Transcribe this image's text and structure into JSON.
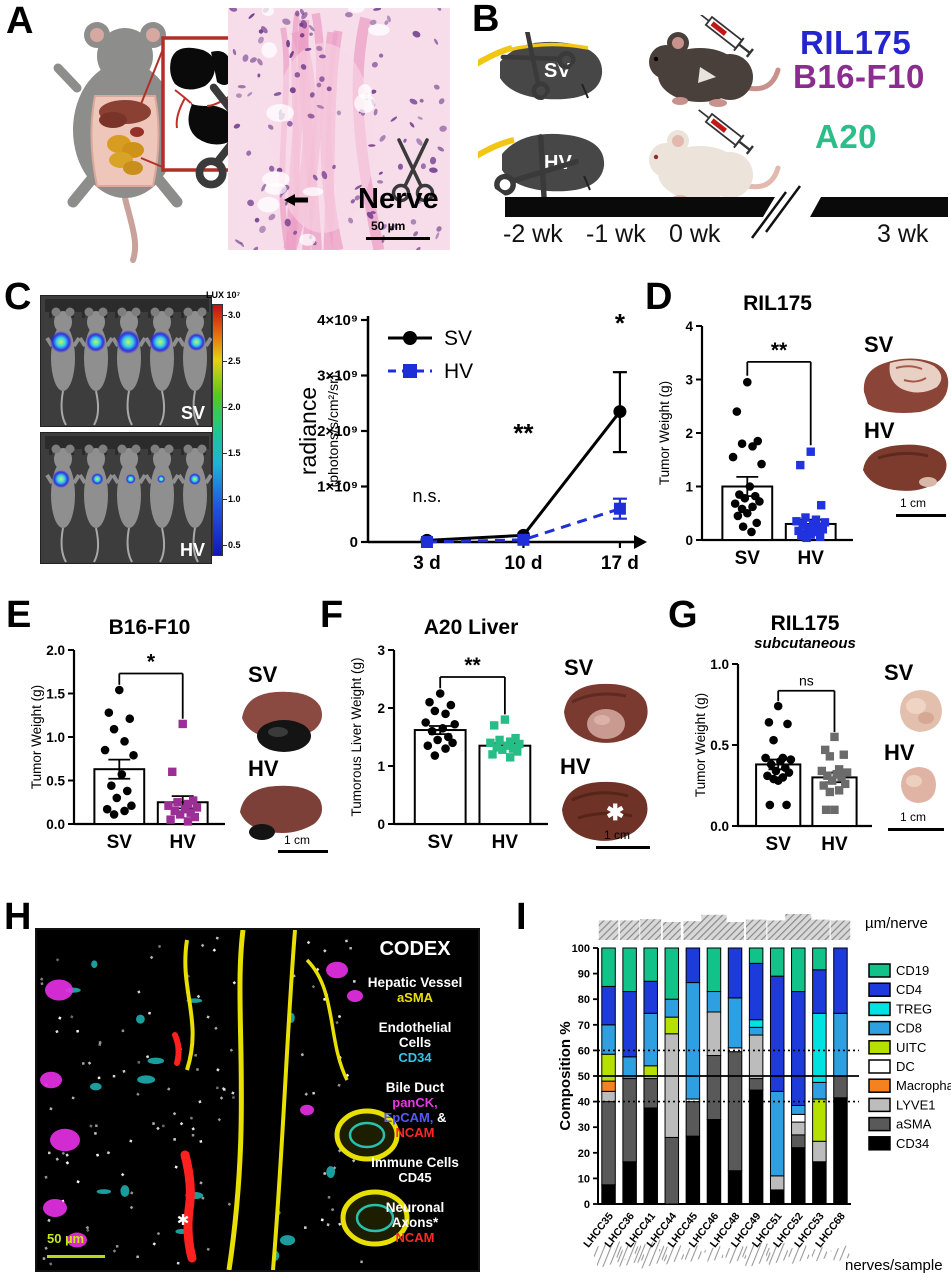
{
  "figure": {
    "panel_labels": {
      "a": "A",
      "b": "B",
      "c": "C",
      "d": "D",
      "e": "E",
      "f": "F",
      "g": "G",
      "h": "H",
      "i": "I"
    },
    "a": {
      "nerve": "Nerve",
      "scale": "50 µm"
    },
    "b": {
      "liver_top": "SV",
      "liver_bottom": "HV",
      "cell_lines": [
        {
          "label": "RIL175",
          "color": "#2525cf"
        },
        {
          "label": "B16-F10",
          "color": "#8b2d8e"
        },
        {
          "label": "A20",
          "color": "#2dbd8b"
        }
      ],
      "timeline": [
        "-2 wk",
        "-1 wk",
        "0 wk",
        "3 wk"
      ]
    },
    "c": {
      "img_top": "SV",
      "img_bottom": "HV",
      "lux_title": "LUX 10⁷",
      "lux_ticks": [
        "3.0",
        "2.5",
        "2.0",
        "1.5",
        "1.0",
        "0.5"
      ]
    },
    "d_photos": {
      "top": "SV",
      "bottom": "HV",
      "scale": "1 cm"
    },
    "e_photos": {
      "top": "SV",
      "bottom": "HV",
      "scale": "1 cm"
    },
    "f_photos": {
      "top": "SV",
      "bottom": "HV",
      "scale": "1 cm",
      "asterisk": "✱"
    },
    "g_photos": {
      "top": "SV",
      "bottom": "HV",
      "scale": "1 cm"
    },
    "h": {
      "title": "CODEX",
      "e0_title": "Hepatic Vessel",
      "e0_m": "aSMA",
      "e1_t1": "Endothelial",
      "e1_t2": "Cells",
      "e1_m": "CD34",
      "e2_title": "Bile Duct",
      "e2_m1": "panCK,",
      "e2_m2a": "EpCAM,",
      "e2_m2b": " &",
      "e2_m3": "NCAM",
      "e3_title": "Immune Cells",
      "e3_m": "CD45",
      "e4_t1": "Neuronal",
      "e4_t2": "Axons*",
      "e4_m": "NCAM",
      "scale": "50 µm",
      "marker_colors": {
        "aSMA": "#e8e000",
        "CD34": "#30c8e8",
        "panCK": "#e838e8",
        "EpCAM": "#5858ff",
        "NCAM": "#ff2828",
        "CD45": "#ffffff"
      }
    }
  },
  "chart_data": [
    {
      "id": "c-radiance",
      "type": "line",
      "ylabel_main": "radiance",
      "ylabel_sub": "(photons/s/cm²/sr)",
      "x": [
        "3 d",
        "10 d",
        "17 d"
      ],
      "ylim": [
        0,
        4
      ],
      "yticks": [
        0,
        1,
        2,
        3,
        4
      ],
      "ytick_labels": [
        "0",
        "1×10⁹",
        "2×10⁹",
        "3×10⁹",
        "4×10⁹"
      ],
      "series": [
        {
          "name": "SV",
          "color": "#000000",
          "marker": "circle",
          "dash": false,
          "values": [
            0.03,
            0.12,
            2.35
          ],
          "err": [
            [
              0,
              0
            ],
            [
              0,
              0
            ],
            [
              0.73,
              0.71
            ]
          ]
        },
        {
          "name": "HV",
          "color": "#1f2fd8",
          "marker": "square",
          "dash": true,
          "values": [
            0.0,
            0.04,
            0.6
          ],
          "err": [
            [
              0,
              0
            ],
            [
              0,
              0
            ],
            [
              0.18,
              0.18
            ]
          ]
        }
      ],
      "annotations": [
        {
          "text": "n.s.",
          "xi": 0,
          "y": 0.72
        },
        {
          "text": "**",
          "xi": 1,
          "y": 1.8
        },
        {
          "text": "*",
          "xi": 2,
          "y": 3.78
        }
      ]
    },
    {
      "id": "d-ril175",
      "type": "bar-scatter",
      "title": "RIL175",
      "subtitle": "",
      "ylabel": "Tumor Weight (g)",
      "ylim": [
        0,
        4
      ],
      "yticks": [
        0,
        1,
        2,
        3,
        4
      ],
      "ytick_labels": [
        "0",
        "1",
        "2",
        "3",
        "4"
      ],
      "sig": "**",
      "groups": [
        {
          "label": "SV",
          "mean": 1.0,
          "sem": 0.18,
          "color": "#000000",
          "marker": "circle",
          "points": [
            2.95,
            2.4,
            1.85,
            1.8,
            1.75,
            1.55,
            1.42,
            1.0,
            0.85,
            0.82,
            0.78,
            0.72,
            0.68,
            0.62,
            0.58,
            0.5,
            0.45,
            0.32,
            0.25,
            0.15
          ]
        },
        {
          "label": "HV",
          "mean": 0.3,
          "sem": 0.08,
          "color": "#2133e0",
          "marker": "square",
          "points": [
            1.65,
            1.4,
            0.65,
            0.42,
            0.38,
            0.35,
            0.33,
            0.3,
            0.28,
            0.25,
            0.22,
            0.2,
            0.17,
            0.15,
            0.12,
            0.1,
            0.08,
            0.06,
            0.04
          ]
        }
      ]
    },
    {
      "id": "e-b16",
      "type": "bar-scatter",
      "title": "B16-F10",
      "subtitle": "",
      "ylabel": "Tumor Weight (g)",
      "ylim": [
        0,
        2
      ],
      "yticks": [
        0,
        0.5,
        1,
        1.5,
        2
      ],
      "ytick_labels": [
        "0.0",
        "0.5",
        "1.0",
        "1.5",
        "2.0"
      ],
      "sig": "*",
      "groups": [
        {
          "label": "SV",
          "mean": 0.63,
          "sem": 0.11,
          "color": "#000000",
          "marker": "circle",
          "points": [
            1.54,
            1.28,
            1.21,
            1.09,
            0.95,
            0.85,
            0.79,
            0.57,
            0.44,
            0.38,
            0.3,
            0.21,
            0.17,
            0.15,
            0.11
          ]
        },
        {
          "label": "HV",
          "mean": 0.25,
          "sem": 0.07,
          "color": "#9c2f96",
          "marker": "square",
          "points": [
            1.15,
            0.6,
            0.27,
            0.25,
            0.23,
            0.21,
            0.19,
            0.17,
            0.15,
            0.13,
            0.11,
            0.08,
            0.05,
            0.03
          ]
        }
      ]
    },
    {
      "id": "f-a20",
      "type": "bar-scatter",
      "title": "A20 Liver",
      "subtitle": "",
      "ylabel": "Tumorous Liver Weight (g)",
      "ylim": [
        0,
        3
      ],
      "yticks": [
        0,
        1,
        2,
        3
      ],
      "ytick_labels": [
        "0",
        "1",
        "2",
        "3"
      ],
      "sig": "**",
      "groups": [
        {
          "label": "SV",
          "mean": 1.62,
          "sem": 0.07,
          "color": "#000000",
          "marker": "circle",
          "points": [
            2.25,
            2.1,
            2.05,
            1.95,
            1.9,
            1.75,
            1.72,
            1.65,
            1.6,
            1.5,
            1.45,
            1.4,
            1.35,
            1.3,
            1.18
          ]
        },
        {
          "label": "HV",
          "mean": 1.35,
          "sem": 0.04,
          "color": "#27bd87",
          "marker": "square",
          "points": [
            1.8,
            1.7,
            1.48,
            1.45,
            1.42,
            1.4,
            1.38,
            1.35,
            1.32,
            1.3,
            1.28,
            1.25,
            1.2,
            1.15
          ]
        }
      ]
    },
    {
      "id": "g-subq",
      "type": "bar-scatter",
      "title": "RIL175",
      "subtitle": "subcutaneous",
      "ylabel": "Tumor Weight (g)",
      "ylim": [
        0,
        1
      ],
      "yticks": [
        0,
        0.5,
        1
      ],
      "ytick_labels": [
        "0.0",
        "0.5",
        "1.0"
      ],
      "sig": "ns",
      "groups": [
        {
          "label": "SV",
          "mean": 0.38,
          "sem": 0.03,
          "color": "#000000",
          "marker": "circle",
          "points": [
            0.74,
            0.64,
            0.63,
            0.53,
            0.42,
            0.42,
            0.41,
            0.4,
            0.38,
            0.36,
            0.34,
            0.33,
            0.31,
            0.3,
            0.29,
            0.28,
            0.13,
            0.13
          ]
        },
        {
          "label": "HV",
          "mean": 0.3,
          "sem": 0.03,
          "color": "#6b6b6b",
          "marker": "square",
          "points": [
            0.55,
            0.47,
            0.44,
            0.43,
            0.35,
            0.34,
            0.33,
            0.32,
            0.31,
            0.3,
            0.28,
            0.26,
            0.25,
            0.22,
            0.21,
            0.1,
            0.1
          ]
        }
      ]
    },
    {
      "id": "i-composition",
      "type": "stacked",
      "ylabel": "Composition %",
      "categories": [
        "LHCC35",
        "LHCC36",
        "LHCC41",
        "LHCC44",
        "LHCC45",
        "LHCC46",
        "LHCC48",
        "LHCC49",
        "LHCC51",
        "LHCC52",
        "LHCC53",
        "LHCC68"
      ],
      "ylim": [
        0,
        100
      ],
      "ytick_step": 10,
      "ref_lines": {
        "solid": [
          50
        ],
        "dotted": [
          40,
          60
        ]
      },
      "stack_order": [
        "CD34",
        "aSMA",
        "LYVE1",
        "Macrophage",
        "DC",
        "UITC",
        "CD8",
        "TREG",
        "CD4",
        "CD19"
      ],
      "legend_order": [
        "CD19",
        "CD4",
        "TREG",
        "CD8",
        "UITC",
        "DC",
        "Macrophage",
        "LYVE1",
        "aSMA",
        "CD34"
      ],
      "colors": {
        "CD19": "#12c389",
        "CD4": "#1c3bda",
        "TREG": "#00e2e2",
        "CD8": "#2e9fe0",
        "UITC": "#b5e000",
        "DC": "#ffffff",
        "Macrophage": "#f58220",
        "LYVE1": "#bcbcbc",
        "aSMA": "#595959",
        "CD34": "#000000"
      },
      "values": {
        "CD34": [
          7.5,
          16.5,
          37.5,
          0,
          26.5,
          33,
          13,
          44.5,
          5.5,
          22,
          16.5,
          41.5
        ],
        "aSMA": [
          32.5,
          32.5,
          11.5,
          26,
          13.5,
          25,
          46.5,
          4.5,
          0,
          5,
          0,
          8.5
        ],
        "LYVE1": [
          4,
          0,
          0,
          40.5,
          0,
          17,
          0,
          17,
          5.5,
          5,
          8,
          0
        ],
        "Macrophage": [
          4,
          0,
          0,
          0,
          0,
          0,
          0,
          0,
          0,
          0,
          0,
          0
        ],
        "DC": [
          0,
          0,
          0,
          0,
          1,
          0,
          1.5,
          0,
          0,
          3,
          0,
          0
        ],
        "UITC": [
          10.5,
          0,
          5,
          6.5,
          0,
          0,
          0,
          0,
          0,
          0,
          16.5,
          0
        ],
        "CD8": [
          11.5,
          8.5,
          20.5,
          7,
          45.5,
          8,
          19.5,
          3,
          33,
          3.5,
          6.5,
          24.5
        ],
        "TREG": [
          0,
          0,
          0,
          0,
          0,
          0,
          0,
          3,
          0,
          0,
          27,
          0
        ],
        "CD4": [
          15,
          25.5,
          12.5,
          0,
          13.5,
          0,
          19.5,
          22,
          45,
          44.5,
          17,
          25.5
        ],
        "CD19": [
          15,
          17,
          13,
          20,
          0,
          17,
          0,
          6,
          11,
          17,
          8.5,
          0
        ]
      },
      "top_hatch_label": "µm/nerve",
      "bottom_hatch_label": "nerves/sample",
      "top_hatch_sizes": [
        0.6,
        0.6,
        0.68,
        0.5,
        0.55,
        0.95,
        0.5,
        0.65,
        0.6,
        1.0,
        0.65,
        0.6
      ],
      "bottom_hatch_sizes": [
        0.95,
        0.85,
        1.0,
        0.65,
        0.45,
        0.4,
        0.55,
        0.9,
        0.65,
        0.55,
        0.35,
        0.4
      ]
    }
  ]
}
